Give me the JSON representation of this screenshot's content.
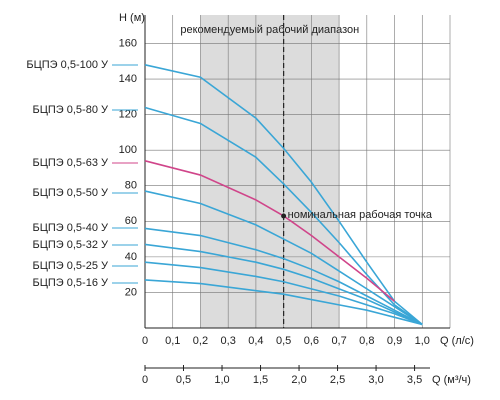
{
  "chart_data": {
    "type": "line",
    "band": {
      "range": [
        0.2,
        0.7
      ],
      "label": "рекомендуемый рабочий диапазон",
      "color": "#dcdcdc"
    },
    "nominal_point": {
      "x": 0.5,
      "y": 63,
      "label": "номинальная рабочая точка"
    },
    "ylabel": "H (м)",
    "xlabel": "Q (л/с)",
    "x2label": "Q (м³/ч)",
    "x": [
      0,
      0.2,
      0.4,
      0.5,
      0.6,
      0.7,
      0.8,
      0.9,
      1.0
    ],
    "series": [
      {
        "name": "БЦПЭ 0,5-100 У",
        "color": "#3aa6d6",
        "values": [
          148,
          141,
          118,
          101,
          82,
          60,
          37,
          15,
          2
        ]
      },
      {
        "name": "БЦПЭ 0,5-80 У",
        "color": "#3aa6d6",
        "values": [
          124,
          115,
          96,
          81,
          65,
          48,
          30,
          13,
          2
        ]
      },
      {
        "name": "БЦПЭ 0,5-63 У",
        "color": "#d0458a",
        "values": [
          94,
          86,
          72,
          63,
          52,
          40,
          28,
          15,
          null
        ]
      },
      {
        "name": "БЦПЭ 0,5-50 У",
        "color": "#3aa6d6",
        "values": [
          77,
          70,
          58,
          50,
          42,
          32,
          22,
          12,
          2
        ]
      },
      {
        "name": "БЦПЭ 0,5-40 У",
        "color": "#3aa6d6",
        "values": [
          56,
          52,
          44,
          39,
          33,
          26,
          18,
          10,
          2
        ]
      },
      {
        "name": "БЦПЭ 0,5-32 У",
        "color": "#3aa6d6",
        "values": [
          47,
          43,
          37,
          33,
          28,
          22,
          16,
          9,
          2
        ]
      },
      {
        "name": "БЦПЭ 0,5-25 У",
        "color": "#3aa6d6",
        "values": [
          37,
          34,
          29,
          26,
          22,
          18,
          13,
          8,
          2
        ]
      },
      {
        "name": "БЦПЭ 0,5-16 У",
        "color": "#3aa6d6",
        "values": [
          27,
          25,
          21,
          19,
          16,
          13,
          10,
          6,
          2
        ]
      }
    ],
    "xlim": [
      0,
      1.1
    ],
    "xticks": [
      0,
      {
        "value": 0.1,
        "label": "0,1"
      },
      {
        "value": 0.2,
        "label": "0,2"
      },
      {
        "value": 0.3,
        "label": "0,3"
      },
      {
        "value": 0.4,
        "label": "0,4"
      },
      {
        "value": 0.5,
        "label": "0,5"
      },
      {
        "value": 0.6,
        "label": "0,6"
      },
      {
        "value": 0.7,
        "label": "0,7"
      },
      {
        "value": 0.8,
        "label": "0,8"
      },
      {
        "value": 0.9,
        "label": "0,9"
      },
      {
        "value": 1.0,
        "label": "1,0"
      }
    ],
    "ylim": [
      0,
      176
    ],
    "yticks": [
      20,
      40,
      60,
      80,
      100,
      120,
      140,
      160
    ],
    "x2lim": [
      0,
      3.96
    ],
    "x2ticks": [
      0,
      {
        "value": 0.5,
        "label": "0,5"
      },
      {
        "value": 1.0,
        "label": "1,0"
      },
      {
        "value": 1.5,
        "label": "1,5"
      },
      {
        "value": 2.0,
        "label": "2,0"
      },
      {
        "value": 2.5,
        "label": "2,5"
      },
      {
        "value": 3.0,
        "label": "3,0"
      },
      {
        "value": 3.5,
        "label": "3,5"
      }
    ],
    "grid": true
  }
}
